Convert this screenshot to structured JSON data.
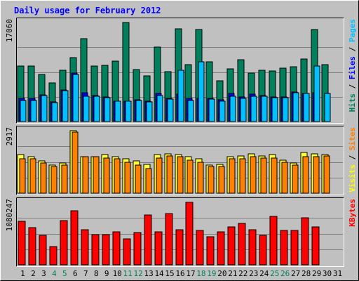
{
  "chart_data": [
    {
      "type": "bar",
      "title": "Daily usage for February 2012",
      "ylabel_max": "17060",
      "legend_vertical": [
        {
          "text": "Hits",
          "color": "#00805c"
        },
        {
          "text": "Files",
          "color": "#0000ff"
        },
        {
          "text": "Pages",
          "color": "#00c0ff"
        }
      ],
      "ylim": [
        0,
        17060
      ],
      "categories": [
        "1",
        "2",
        "3",
        "4",
        "5",
        "6",
        "7",
        "8",
        "9",
        "10",
        "11",
        "12",
        "13",
        "14",
        "15",
        "16",
        "17",
        "18",
        "19",
        "20",
        "21",
        "22",
        "23",
        "24",
        "25",
        "26",
        "27",
        "28",
        "29",
        "30",
        "31"
      ],
      "series": [
        {
          "name": "Hits",
          "color": "#00805c",
          "values": [
            9500,
            9500,
            8100,
            6600,
            8800,
            11000,
            14300,
            9600,
            9700,
            10400,
            17060,
            8900,
            7900,
            12800,
            8600,
            16000,
            9800,
            15900,
            10300,
            7000,
            9100,
            10600,
            8400,
            8800,
            8700,
            9200,
            9400,
            10800,
            15900,
            9800,
            null
          ]
        },
        {
          "name": "Files",
          "color": "#0000ff",
          "values": [
            4000,
            4000,
            4600,
            3400,
            5400,
            8300,
            5000,
            4500,
            4200,
            3500,
            3500,
            3700,
            3500,
            4900,
            4000,
            4700,
            4000,
            4000,
            4000,
            3700,
            4800,
            4200,
            4700,
            4500,
            4200,
            4200,
            5100,
            4800,
            5000,
            null,
            null
          ]
        },
        {
          "name": "Pages",
          "color": "#00c0ff",
          "values": [
            3600,
            3600,
            4500,
            3300,
            5300,
            8100,
            4400,
            4300,
            4100,
            3500,
            3500,
            3600,
            3400,
            4500,
            3900,
            8800,
            3600,
            10300,
            3900,
            3500,
            4400,
            4000,
            4300,
            4300,
            4100,
            4100,
            5000,
            4900,
            9500,
            4800,
            null
          ]
        }
      ]
    },
    {
      "type": "bar",
      "ylabel_max": "2917",
      "legend_vertical": [
        {
          "text": "Visits",
          "color": "#ffff00"
        },
        {
          "text": "Sites",
          "color": "#ff8000"
        }
      ],
      "ylim": [
        0,
        2917
      ],
      "categories": [
        "1",
        "2",
        "3",
        "4",
        "5",
        "6",
        "7",
        "8",
        "9",
        "10",
        "11",
        "12",
        "13",
        "14",
        "15",
        "16",
        "17",
        "18",
        "19",
        "20",
        "21",
        "22",
        "23",
        "24",
        "25",
        "26",
        "27",
        "28",
        "29",
        "30",
        "31"
      ],
      "series": [
        {
          "name": "Visits",
          "color": "#ffff40",
          "values": [
            1800,
            1700,
            1500,
            1300,
            1400,
            2917,
            1700,
            1700,
            1800,
            1700,
            1600,
            1500,
            1350,
            1800,
            1850,
            1800,
            1700,
            1600,
            1300,
            1350,
            1700,
            1750,
            1850,
            1750,
            1800,
            1550,
            1400,
            1900,
            1850,
            1800,
            null
          ]
        },
        {
          "name": "Sites",
          "color": "#ff8000",
          "values": [
            1600,
            1600,
            1400,
            1250,
            1300,
            2850,
            1700,
            1700,
            1650,
            1600,
            1450,
            1300,
            1150,
            1650,
            1750,
            1700,
            1550,
            1450,
            1250,
            1250,
            1600,
            1600,
            1700,
            1650,
            1650,
            1450,
            1300,
            1700,
            1700,
            1750,
            null
          ]
        }
      ]
    },
    {
      "type": "bar",
      "ylabel_max": "1080247",
      "legend_vertical": [
        {
          "text": "KBytes",
          "color": "#ff0000"
        }
      ],
      "ylim": [
        0,
        1080247
      ],
      "categories": [
        "1",
        "2",
        "3",
        "4",
        "5",
        "6",
        "7",
        "8",
        "9",
        "10",
        "11",
        "12",
        "13",
        "14",
        "15",
        "16",
        "17",
        "18",
        "19",
        "20",
        "21",
        "22",
        "23",
        "24",
        "25",
        "26",
        "27",
        "28",
        "29",
        "30",
        "31"
      ],
      "series": [
        {
          "name": "KBytes",
          "color": "#ff0000",
          "values": [
            750000,
            640000,
            510000,
            320000,
            760000,
            930000,
            610000,
            520000,
            520000,
            570000,
            450000,
            560000,
            860000,
            570000,
            880000,
            610000,
            1080247,
            600000,
            490000,
            570000,
            660000,
            720000,
            610000,
            510000,
            840000,
            590000,
            590000,
            810000,
            650000,
            null,
            null
          ]
        }
      ]
    }
  ],
  "x_axis": {
    "labels": [
      "1",
      "2",
      "3",
      "4",
      "5",
      "6",
      "7",
      "8",
      "9",
      "10",
      "11",
      "12",
      "13",
      "14",
      "15",
      "16",
      "17",
      "18",
      "19",
      "20",
      "21",
      "22",
      "23",
      "24",
      "25",
      "26",
      "27",
      "28",
      "29",
      "30",
      "31"
    ],
    "weekend_days": [
      4,
      5,
      11,
      12,
      18,
      19,
      25,
      26
    ],
    "weekday_color": "#000000",
    "weekend_color": "#00805c"
  },
  "colors": {
    "background": "#c0c0c0",
    "title": "#0000ff",
    "gridline": "#808080"
  }
}
